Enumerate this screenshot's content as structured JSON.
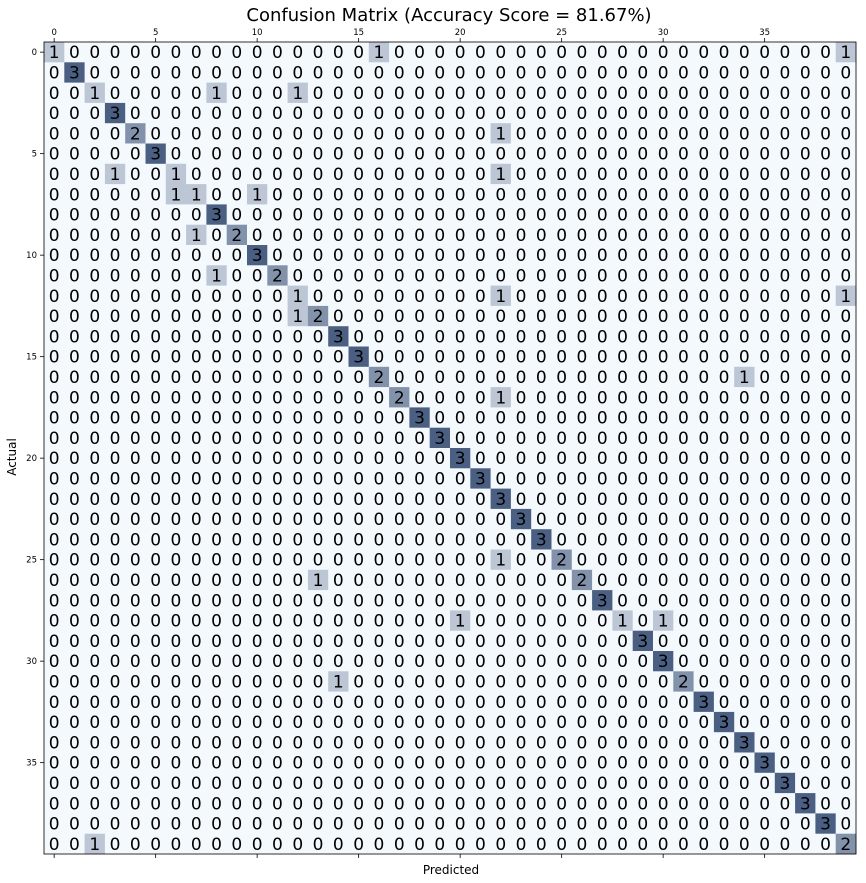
{
  "chart_data": {
    "type": "heatmap",
    "title": "Confusion Matrix (Accuracy Score = 81.67%)",
    "xlabel": "Predicted",
    "ylabel": "Actual",
    "size": 40,
    "x_tick_labels": [
      "0",
      "5",
      "10",
      "15",
      "20",
      "25",
      "30",
      "35"
    ],
    "y_tick_labels": [
      "0",
      "5",
      "10",
      "15",
      "20",
      "25",
      "30",
      "35"
    ],
    "value_range": [
      0,
      3
    ],
    "colors": {
      "low": "#f4f9fd",
      "high": "#4b5f82"
    },
    "matrix": [
      [
        1,
        0,
        0,
        0,
        0,
        0,
        0,
        0,
        0,
        0,
        0,
        0,
        0,
        0,
        0,
        0,
        1,
        0,
        0,
        0,
        0,
        0,
        0,
        0,
        0,
        0,
        0,
        0,
        0,
        0,
        0,
        0,
        0,
        0,
        0,
        0,
        0,
        0,
        0,
        1
      ],
      [
        0,
        3,
        0,
        0,
        0,
        0,
        0,
        0,
        0,
        0,
        0,
        0,
        0,
        0,
        0,
        0,
        0,
        0,
        0,
        0,
        0,
        0,
        0,
        0,
        0,
        0,
        0,
        0,
        0,
        0,
        0,
        0,
        0,
        0,
        0,
        0,
        0,
        0,
        0,
        0
      ],
      [
        0,
        0,
        1,
        0,
        0,
        0,
        0,
        0,
        1,
        0,
        0,
        0,
        1,
        0,
        0,
        0,
        0,
        0,
        0,
        0,
        0,
        0,
        0,
        0,
        0,
        0,
        0,
        0,
        0,
        0,
        0,
        0,
        0,
        0,
        0,
        0,
        0,
        0,
        0,
        0
      ],
      [
        0,
        0,
        0,
        3,
        0,
        0,
        0,
        0,
        0,
        0,
        0,
        0,
        0,
        0,
        0,
        0,
        0,
        0,
        0,
        0,
        0,
        0,
        0,
        0,
        0,
        0,
        0,
        0,
        0,
        0,
        0,
        0,
        0,
        0,
        0,
        0,
        0,
        0,
        0,
        0
      ],
      [
        0,
        0,
        0,
        0,
        2,
        0,
        0,
        0,
        0,
        0,
        0,
        0,
        0,
        0,
        0,
        0,
        0,
        0,
        0,
        0,
        0,
        0,
        1,
        0,
        0,
        0,
        0,
        0,
        0,
        0,
        0,
        0,
        0,
        0,
        0,
        0,
        0,
        0,
        0,
        0
      ],
      [
        0,
        0,
        0,
        0,
        0,
        3,
        0,
        0,
        0,
        0,
        0,
        0,
        0,
        0,
        0,
        0,
        0,
        0,
        0,
        0,
        0,
        0,
        0,
        0,
        0,
        0,
        0,
        0,
        0,
        0,
        0,
        0,
        0,
        0,
        0,
        0,
        0,
        0,
        0,
        0
      ],
      [
        0,
        0,
        0,
        1,
        0,
        0,
        1,
        0,
        0,
        0,
        0,
        0,
        0,
        0,
        0,
        0,
        0,
        0,
        0,
        0,
        0,
        0,
        1,
        0,
        0,
        0,
        0,
        0,
        0,
        0,
        0,
        0,
        0,
        0,
        0,
        0,
        0,
        0,
        0,
        0
      ],
      [
        0,
        0,
        0,
        0,
        0,
        0,
        1,
        1,
        0,
        0,
        1,
        0,
        0,
        0,
        0,
        0,
        0,
        0,
        0,
        0,
        0,
        0,
        0,
        0,
        0,
        0,
        0,
        0,
        0,
        0,
        0,
        0,
        0,
        0,
        0,
        0,
        0,
        0,
        0,
        0
      ],
      [
        0,
        0,
        0,
        0,
        0,
        0,
        0,
        0,
        3,
        0,
        0,
        0,
        0,
        0,
        0,
        0,
        0,
        0,
        0,
        0,
        0,
        0,
        0,
        0,
        0,
        0,
        0,
        0,
        0,
        0,
        0,
        0,
        0,
        0,
        0,
        0,
        0,
        0,
        0,
        0
      ],
      [
        0,
        0,
        0,
        0,
        0,
        0,
        0,
        1,
        0,
        2,
        0,
        0,
        0,
        0,
        0,
        0,
        0,
        0,
        0,
        0,
        0,
        0,
        0,
        0,
        0,
        0,
        0,
        0,
        0,
        0,
        0,
        0,
        0,
        0,
        0,
        0,
        0,
        0,
        0,
        0
      ],
      [
        0,
        0,
        0,
        0,
        0,
        0,
        0,
        0,
        0,
        0,
        3,
        0,
        0,
        0,
        0,
        0,
        0,
        0,
        0,
        0,
        0,
        0,
        0,
        0,
        0,
        0,
        0,
        0,
        0,
        0,
        0,
        0,
        0,
        0,
        0,
        0,
        0,
        0,
        0,
        0
      ],
      [
        0,
        0,
        0,
        0,
        0,
        0,
        0,
        0,
        1,
        0,
        0,
        2,
        0,
        0,
        0,
        0,
        0,
        0,
        0,
        0,
        0,
        0,
        0,
        0,
        0,
        0,
        0,
        0,
        0,
        0,
        0,
        0,
        0,
        0,
        0,
        0,
        0,
        0,
        0,
        0
      ],
      [
        0,
        0,
        0,
        0,
        0,
        0,
        0,
        0,
        0,
        0,
        0,
        0,
        1,
        0,
        0,
        0,
        0,
        0,
        0,
        0,
        0,
        0,
        1,
        0,
        0,
        0,
        0,
        0,
        0,
        0,
        0,
        0,
        0,
        0,
        0,
        0,
        0,
        0,
        0,
        1
      ],
      [
        0,
        0,
        0,
        0,
        0,
        0,
        0,
        0,
        0,
        0,
        0,
        0,
        1,
        2,
        0,
        0,
        0,
        0,
        0,
        0,
        0,
        0,
        0,
        0,
        0,
        0,
        0,
        0,
        0,
        0,
        0,
        0,
        0,
        0,
        0,
        0,
        0,
        0,
        0,
        0
      ],
      [
        0,
        0,
        0,
        0,
        0,
        0,
        0,
        0,
        0,
        0,
        0,
        0,
        0,
        0,
        3,
        0,
        0,
        0,
        0,
        0,
        0,
        0,
        0,
        0,
        0,
        0,
        0,
        0,
        0,
        0,
        0,
        0,
        0,
        0,
        0,
        0,
        0,
        0,
        0,
        0
      ],
      [
        0,
        0,
        0,
        0,
        0,
        0,
        0,
        0,
        0,
        0,
        0,
        0,
        0,
        0,
        0,
        3,
        0,
        0,
        0,
        0,
        0,
        0,
        0,
        0,
        0,
        0,
        0,
        0,
        0,
        0,
        0,
        0,
        0,
        0,
        0,
        0,
        0,
        0,
        0,
        0
      ],
      [
        0,
        0,
        0,
        0,
        0,
        0,
        0,
        0,
        0,
        0,
        0,
        0,
        0,
        0,
        0,
        0,
        2,
        0,
        0,
        0,
        0,
        0,
        0,
        0,
        0,
        0,
        0,
        0,
        0,
        0,
        0,
        0,
        0,
        0,
        1,
        0,
        0,
        0,
        0,
        0
      ],
      [
        0,
        0,
        0,
        0,
        0,
        0,
        0,
        0,
        0,
        0,
        0,
        0,
        0,
        0,
        0,
        0,
        0,
        2,
        0,
        0,
        0,
        0,
        1,
        0,
        0,
        0,
        0,
        0,
        0,
        0,
        0,
        0,
        0,
        0,
        0,
        0,
        0,
        0,
        0,
        0
      ],
      [
        0,
        0,
        0,
        0,
        0,
        0,
        0,
        0,
        0,
        0,
        0,
        0,
        0,
        0,
        0,
        0,
        0,
        0,
        3,
        0,
        0,
        0,
        0,
        0,
        0,
        0,
        0,
        0,
        0,
        0,
        0,
        0,
        0,
        0,
        0,
        0,
        0,
        0,
        0,
        0
      ],
      [
        0,
        0,
        0,
        0,
        0,
        0,
        0,
        0,
        0,
        0,
        0,
        0,
        0,
        0,
        0,
        0,
        0,
        0,
        0,
        3,
        0,
        0,
        0,
        0,
        0,
        0,
        0,
        0,
        0,
        0,
        0,
        0,
        0,
        0,
        0,
        0,
        0,
        0,
        0,
        0
      ],
      [
        0,
        0,
        0,
        0,
        0,
        0,
        0,
        0,
        0,
        0,
        0,
        0,
        0,
        0,
        0,
        0,
        0,
        0,
        0,
        0,
        3,
        0,
        0,
        0,
        0,
        0,
        0,
        0,
        0,
        0,
        0,
        0,
        0,
        0,
        0,
        0,
        0,
        0,
        0,
        0
      ],
      [
        0,
        0,
        0,
        0,
        0,
        0,
        0,
        0,
        0,
        0,
        0,
        0,
        0,
        0,
        0,
        0,
        0,
        0,
        0,
        0,
        0,
        3,
        0,
        0,
        0,
        0,
        0,
        0,
        0,
        0,
        0,
        0,
        0,
        0,
        0,
        0,
        0,
        0,
        0,
        0
      ],
      [
        0,
        0,
        0,
        0,
        0,
        0,
        0,
        0,
        0,
        0,
        0,
        0,
        0,
        0,
        0,
        0,
        0,
        0,
        0,
        0,
        0,
        0,
        3,
        0,
        0,
        0,
        0,
        0,
        0,
        0,
        0,
        0,
        0,
        0,
        0,
        0,
        0,
        0,
        0,
        0
      ],
      [
        0,
        0,
        0,
        0,
        0,
        0,
        0,
        0,
        0,
        0,
        0,
        0,
        0,
        0,
        0,
        0,
        0,
        0,
        0,
        0,
        0,
        0,
        0,
        3,
        0,
        0,
        0,
        0,
        0,
        0,
        0,
        0,
        0,
        0,
        0,
        0,
        0,
        0,
        0,
        0
      ],
      [
        0,
        0,
        0,
        0,
        0,
        0,
        0,
        0,
        0,
        0,
        0,
        0,
        0,
        0,
        0,
        0,
        0,
        0,
        0,
        0,
        0,
        0,
        0,
        0,
        3,
        0,
        0,
        0,
        0,
        0,
        0,
        0,
        0,
        0,
        0,
        0,
        0,
        0,
        0,
        0
      ],
      [
        0,
        0,
        0,
        0,
        0,
        0,
        0,
        0,
        0,
        0,
        0,
        0,
        0,
        0,
        0,
        0,
        0,
        0,
        0,
        0,
        0,
        0,
        1,
        0,
        0,
        2,
        0,
        0,
        0,
        0,
        0,
        0,
        0,
        0,
        0,
        0,
        0,
        0,
        0,
        0
      ],
      [
        0,
        0,
        0,
        0,
        0,
        0,
        0,
        0,
        0,
        0,
        0,
        0,
        0,
        1,
        0,
        0,
        0,
        0,
        0,
        0,
        0,
        0,
        0,
        0,
        0,
        0,
        2,
        0,
        0,
        0,
        0,
        0,
        0,
        0,
        0,
        0,
        0,
        0,
        0,
        0
      ],
      [
        0,
        0,
        0,
        0,
        0,
        0,
        0,
        0,
        0,
        0,
        0,
        0,
        0,
        0,
        0,
        0,
        0,
        0,
        0,
        0,
        0,
        0,
        0,
        0,
        0,
        0,
        0,
        3,
        0,
        0,
        0,
        0,
        0,
        0,
        0,
        0,
        0,
        0,
        0,
        0
      ],
      [
        0,
        0,
        0,
        0,
        0,
        0,
        0,
        0,
        0,
        0,
        0,
        0,
        0,
        0,
        0,
        0,
        0,
        0,
        0,
        0,
        1,
        0,
        0,
        0,
        0,
        0,
        0,
        0,
        1,
        0,
        1,
        0,
        0,
        0,
        0,
        0,
        0,
        0,
        0,
        0
      ],
      [
        0,
        0,
        0,
        0,
        0,
        0,
        0,
        0,
        0,
        0,
        0,
        0,
        0,
        0,
        0,
        0,
        0,
        0,
        0,
        0,
        0,
        0,
        0,
        0,
        0,
        0,
        0,
        0,
        0,
        3,
        0,
        0,
        0,
        0,
        0,
        0,
        0,
        0,
        0,
        0
      ],
      [
        0,
        0,
        0,
        0,
        0,
        0,
        0,
        0,
        0,
        0,
        0,
        0,
        0,
        0,
        0,
        0,
        0,
        0,
        0,
        0,
        0,
        0,
        0,
        0,
        0,
        0,
        0,
        0,
        0,
        0,
        3,
        0,
        0,
        0,
        0,
        0,
        0,
        0,
        0,
        0
      ],
      [
        0,
        0,
        0,
        0,
        0,
        0,
        0,
        0,
        0,
        0,
        0,
        0,
        0,
        0,
        1,
        0,
        0,
        0,
        0,
        0,
        0,
        0,
        0,
        0,
        0,
        0,
        0,
        0,
        0,
        0,
        0,
        2,
        0,
        0,
        0,
        0,
        0,
        0,
        0,
        0
      ],
      [
        0,
        0,
        0,
        0,
        0,
        0,
        0,
        0,
        0,
        0,
        0,
        0,
        0,
        0,
        0,
        0,
        0,
        0,
        0,
        0,
        0,
        0,
        0,
        0,
        0,
        0,
        0,
        0,
        0,
        0,
        0,
        0,
        3,
        0,
        0,
        0,
        0,
        0,
        0,
        0
      ],
      [
        0,
        0,
        0,
        0,
        0,
        0,
        0,
        0,
        0,
        0,
        0,
        0,
        0,
        0,
        0,
        0,
        0,
        0,
        0,
        0,
        0,
        0,
        0,
        0,
        0,
        0,
        0,
        0,
        0,
        0,
        0,
        0,
        0,
        3,
        0,
        0,
        0,
        0,
        0,
        0
      ],
      [
        0,
        0,
        0,
        0,
        0,
        0,
        0,
        0,
        0,
        0,
        0,
        0,
        0,
        0,
        0,
        0,
        0,
        0,
        0,
        0,
        0,
        0,
        0,
        0,
        0,
        0,
        0,
        0,
        0,
        0,
        0,
        0,
        0,
        0,
        3,
        0,
        0,
        0,
        0,
        0
      ],
      [
        0,
        0,
        0,
        0,
        0,
        0,
        0,
        0,
        0,
        0,
        0,
        0,
        0,
        0,
        0,
        0,
        0,
        0,
        0,
        0,
        0,
        0,
        0,
        0,
        0,
        0,
        0,
        0,
        0,
        0,
        0,
        0,
        0,
        0,
        0,
        3,
        0,
        0,
        0,
        0
      ],
      [
        0,
        0,
        0,
        0,
        0,
        0,
        0,
        0,
        0,
        0,
        0,
        0,
        0,
        0,
        0,
        0,
        0,
        0,
        0,
        0,
        0,
        0,
        0,
        0,
        0,
        0,
        0,
        0,
        0,
        0,
        0,
        0,
        0,
        0,
        0,
        0,
        3,
        0,
        0,
        0
      ],
      [
        0,
        0,
        0,
        0,
        0,
        0,
        0,
        0,
        0,
        0,
        0,
        0,
        0,
        0,
        0,
        0,
        0,
        0,
        0,
        0,
        0,
        0,
        0,
        0,
        0,
        0,
        0,
        0,
        0,
        0,
        0,
        0,
        0,
        0,
        0,
        0,
        0,
        3,
        0,
        0
      ],
      [
        0,
        0,
        0,
        0,
        0,
        0,
        0,
        0,
        0,
        0,
        0,
        0,
        0,
        0,
        0,
        0,
        0,
        0,
        0,
        0,
        0,
        0,
        0,
        0,
        0,
        0,
        0,
        0,
        0,
        0,
        0,
        0,
        0,
        0,
        0,
        0,
        0,
        0,
        3,
        0
      ],
      [
        0,
        0,
        1,
        0,
        0,
        0,
        0,
        0,
        0,
        0,
        0,
        0,
        0,
        0,
        0,
        0,
        0,
        0,
        0,
        0,
        0,
        0,
        0,
        0,
        0,
        0,
        0,
        0,
        0,
        0,
        0,
        0,
        0,
        0,
        0,
        0,
        0,
        0,
        0,
        2
      ]
    ]
  }
}
